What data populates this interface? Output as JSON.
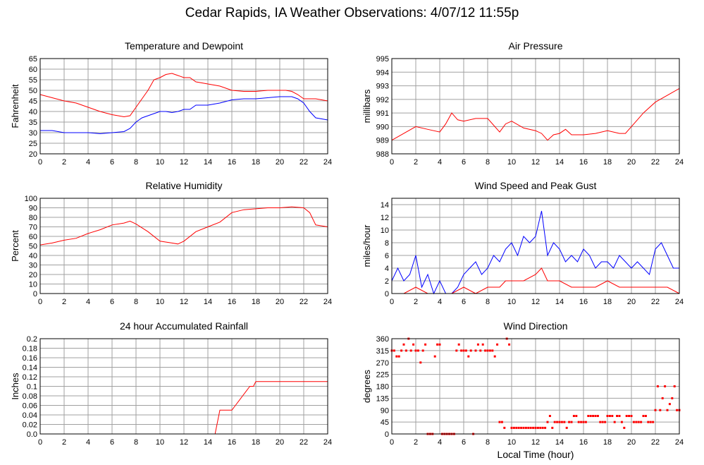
{
  "page": {
    "title": "Cedar Rapids, IA Weather Observations: 4/07/12 11:55p"
  },
  "x_axis": {
    "ticks": [
      "0",
      "2",
      "4",
      "6",
      "8",
      "10",
      "12",
      "14",
      "16",
      "18",
      "20",
      "22",
      "24"
    ],
    "xlabel": "Local Time (hour)"
  },
  "colors": {
    "red": "#ff0000",
    "blue": "#0000ff",
    "grid": "#a0a0a0",
    "frame": "#000000"
  },
  "chart_data": [
    {
      "id": "temperature",
      "type": "line",
      "title": "Temperature and Dewpoint",
      "ylabel": "Fahrenheit",
      "xlim": [
        0,
        24
      ],
      "ylim": [
        20,
        65
      ],
      "yticks": [
        "20",
        "25",
        "30",
        "35",
        "40",
        "45",
        "50",
        "55",
        "60",
        "65"
      ],
      "grid": true,
      "series": [
        {
          "color": "#ff0000",
          "x": [
            0,
            1,
            2,
            3,
            4,
            5,
            6,
            7,
            7.5,
            8,
            8.5,
            9,
            9.5,
            10,
            10.5,
            11,
            11.5,
            12,
            12.5,
            13,
            14,
            15,
            16,
            17,
            18,
            19,
            20,
            20.5,
            21,
            21.5,
            22,
            22.5,
            23,
            24
          ],
          "y": [
            48,
            46.5,
            45,
            44,
            42,
            40,
            38.5,
            37.5,
            38,
            42,
            46,
            50,
            55,
            56,
            57.5,
            58,
            57,
            56,
            56,
            54,
            53,
            52,
            50,
            49.5,
            49.5,
            50,
            50,
            50,
            49.5,
            48,
            46,
            46,
            46,
            45
          ]
        },
        {
          "color": "#0000ff",
          "x": [
            0,
            1,
            2,
            3,
            4,
            5,
            6,
            7,
            7.5,
            8,
            8.5,
            9,
            9.5,
            10,
            10.5,
            11,
            11.5,
            12,
            12.5,
            13,
            14,
            15,
            16,
            17,
            18,
            19,
            20,
            20.5,
            21,
            21.5,
            22,
            22.5,
            23,
            24
          ],
          "y": [
            31,
            31,
            30,
            30,
            30,
            29.5,
            30,
            30.5,
            32,
            35,
            37,
            38,
            39,
            40,
            40,
            39.5,
            40,
            41,
            41,
            43,
            43,
            44,
            45.5,
            46,
            46,
            46.5,
            47,
            47,
            47,
            46,
            44,
            40,
            37,
            36
          ]
        }
      ]
    },
    {
      "id": "pressure",
      "type": "line",
      "title": "Air Pressure",
      "ylabel": "millibars",
      "xlim": [
        0,
        24
      ],
      "ylim": [
        988,
        995
      ],
      "yticks": [
        "988",
        "989",
        "990",
        "991",
        "992",
        "993",
        "994",
        "995"
      ],
      "grid": true,
      "series": [
        {
          "color": "#ff0000",
          "x": [
            0,
            1,
            2,
            3,
            4,
            4.5,
            5,
            5.5,
            6,
            7,
            8,
            9,
            9.5,
            10,
            11,
            12,
            12.5,
            13,
            13.5,
            14,
            14.5,
            15,
            16,
            17,
            18,
            19,
            19.5,
            20,
            20.5,
            21,
            22,
            23,
            24
          ],
          "y": [
            989,
            989.5,
            990,
            989.8,
            989.6,
            990.2,
            991,
            990.5,
            990.4,
            990.6,
            990.6,
            989.6,
            990.2,
            990.4,
            989.9,
            989.7,
            989.5,
            989,
            989.4,
            989.5,
            989.8,
            989.4,
            989.4,
            989.5,
            989.7,
            989.5,
            989.5,
            990,
            990.5,
            991,
            991.8,
            992.3,
            992.8
          ]
        }
      ]
    },
    {
      "id": "humidity",
      "type": "line",
      "title": "Relative Humidity",
      "ylabel": "Percent",
      "xlim": [
        0,
        24
      ],
      "ylim": [
        0,
        100
      ],
      "yticks": [
        "0",
        "10",
        "20",
        "30",
        "40",
        "50",
        "60",
        "70",
        "80",
        "90",
        "100"
      ],
      "grid": true,
      "series": [
        {
          "color": "#ff0000",
          "x": [
            0,
            1,
            2,
            3,
            4,
            5,
            6,
            7,
            7.5,
            8,
            9,
            10,
            11,
            11.5,
            12,
            13,
            14,
            15,
            16,
            17,
            18,
            19,
            20,
            21,
            22,
            22.5,
            23,
            24
          ],
          "y": [
            51,
            53,
            56,
            58,
            63,
            67,
            72,
            74,
            76,
            73,
            65,
            55,
            53,
            52,
            55,
            65,
            70,
            75,
            85,
            88,
            89,
            90,
            90,
            91,
            90,
            85,
            72,
            70
          ]
        }
      ]
    },
    {
      "id": "wind",
      "type": "line",
      "title": "Wind Speed and Peak Gust",
      "ylabel": "miles/hour",
      "xlim": [
        0,
        24
      ],
      "ylim": [
        0,
        15
      ],
      "yticks": [
        "0",
        "2",
        "4",
        "6",
        "8",
        "10",
        "12",
        "14"
      ],
      "grid": true,
      "series": [
        {
          "color": "#0000ff",
          "x": [
            0,
            0.5,
            1,
            1.5,
            2,
            2.5,
            3,
            3.5,
            4,
            4.5,
            5,
            5.5,
            6,
            6.5,
            7,
            7.5,
            8,
            8.5,
            9,
            9.5,
            10,
            10.5,
            11,
            11.5,
            12,
            12.5,
            13,
            13.5,
            14,
            14.5,
            15,
            15.5,
            16,
            16.5,
            17,
            17.5,
            18,
            18.5,
            19,
            19.5,
            20,
            20.5,
            21,
            21.5,
            22,
            22.5,
            23,
            23.5,
            24
          ],
          "y": [
            2,
            4,
            2,
            3,
            6,
            1,
            3,
            0,
            2,
            0,
            0,
            1,
            3,
            4,
            5,
            3,
            4,
            6,
            5,
            7,
            8,
            6,
            9,
            8,
            9,
            13,
            6,
            8,
            7,
            5,
            6,
            5,
            7,
            6,
            4,
            5,
            5,
            4,
            6,
            5,
            4,
            5,
            4,
            3,
            7,
            8,
            6,
            4,
            4
          ]
        },
        {
          "color": "#ff0000",
          "x": [
            0,
            1,
            2,
            3,
            4,
            5,
            6,
            7,
            8,
            9,
            9.5,
            10,
            11,
            12,
            12.5,
            13,
            14,
            15,
            16,
            17,
            18,
            19,
            20,
            21,
            22,
            23,
            24
          ],
          "y": [
            0,
            0,
            1,
            0,
            0,
            0,
            1,
            0,
            1,
            1,
            2,
            2,
            2,
            3,
            4,
            2,
            2,
            1,
            1,
            1,
            2,
            1,
            1,
            1,
            1,
            1,
            0
          ]
        }
      ]
    },
    {
      "id": "rainfall",
      "type": "line",
      "title": "24 hour Accumulated Rainfall",
      "ylabel": "Inches",
      "xlim": [
        0,
        24
      ],
      "ylim": [
        0,
        0.2
      ],
      "yticks": [
        "0.0",
        "0.02",
        "0.04",
        "0.06",
        "0.08",
        "0.1",
        "0.12",
        "0.14",
        "0.16",
        "0.18",
        "0.2"
      ],
      "grid": true,
      "series": [
        {
          "color": "#ff0000",
          "x": [
            0,
            14.6,
            15,
            16,
            16.3,
            16.6,
            16.9,
            17.2,
            17.5,
            17.8,
            18,
            20,
            24
          ],
          "y": [
            0,
            0,
            0.05,
            0.05,
            0.06,
            0.07,
            0.08,
            0.09,
            0.1,
            0.1,
            0.11,
            0.11,
            0.11
          ]
        }
      ]
    },
    {
      "id": "direction",
      "type": "scatter",
      "title": "Wind Direction",
      "ylabel": "degrees",
      "xlim": [
        0,
        24
      ],
      "ylim": [
        0,
        360
      ],
      "yticks": [
        "0",
        "45",
        "90",
        "135",
        "180",
        "225",
        "270",
        "315",
        "360"
      ],
      "grid": true,
      "series": [
        {
          "color": "#ff0000",
          "x": [
            0,
            0.2,
            0.4,
            0.6,
            0.8,
            1,
            1.2,
            1.4,
            1.6,
            1.8,
            2,
            2.2,
            2.4,
            2.6,
            2.8,
            3,
            3.2,
            3.4,
            3.6,
            3.8,
            4,
            4.2,
            4.4,
            4.6,
            4.8,
            5,
            5.2,
            5.4,
            5.6,
            5.8,
            6,
            6.2,
            6.4,
            6.6,
            6.8,
            7,
            7.2,
            7.4,
            7.6,
            7.8,
            8,
            8.2,
            8.4,
            8.6,
            8.8,
            9,
            9.2,
            9.4,
            9.6,
            9.8,
            10,
            10.2,
            10.4,
            10.6,
            10.8,
            11,
            11.2,
            11.4,
            11.6,
            11.8,
            12,
            12.2,
            12.4,
            12.6,
            12.8,
            13,
            13.2,
            13.4,
            13.6,
            13.8,
            14,
            14.2,
            14.4,
            14.6,
            14.8,
            15,
            15.2,
            15.4,
            15.6,
            15.8,
            16,
            16.2,
            16.4,
            16.6,
            16.8,
            17,
            17.2,
            17.4,
            17.6,
            17.8,
            18,
            18.2,
            18.4,
            18.6,
            18.8,
            19,
            19.2,
            19.4,
            19.6,
            19.8,
            20,
            20.2,
            20.4,
            20.6,
            20.8,
            21,
            21.2,
            21.4,
            21.6,
            21.8,
            22,
            22.2,
            22.4,
            22.6,
            22.8,
            23,
            23.2,
            23.4,
            23.6,
            23.8,
            24
          ],
          "y": [
            315,
            315,
            293,
            293,
            315,
            338,
            315,
            360,
            315,
            338,
            315,
            315,
            270,
            315,
            338,
            0,
            0,
            0,
            293,
            338,
            338,
            0,
            0,
            0,
            0,
            0,
            0,
            315,
            338,
            315,
            315,
            315,
            293,
            315,
            0,
            315,
            338,
            315,
            338,
            315,
            315,
            315,
            315,
            293,
            338,
            45,
            45,
            23,
            360,
            338,
            23,
            23,
            23,
            23,
            23,
            23,
            23,
            23,
            23,
            23,
            23,
            23,
            23,
            23,
            23,
            45,
            68,
            23,
            45,
            45,
            45,
            45,
            45,
            23,
            45,
            45,
            68,
            68,
            45,
            45,
            45,
            45,
            68,
            68,
            68,
            68,
            68,
            45,
            45,
            45,
            68,
            68,
            68,
            45,
            68,
            68,
            45,
            23,
            68,
            68,
            68,
            45,
            45,
            45,
            45,
            68,
            68,
            45,
            45,
            45,
            90,
            180,
            90,
            135,
            180,
            90,
            113,
            135,
            180,
            90,
            90
          ]
        }
      ]
    }
  ]
}
